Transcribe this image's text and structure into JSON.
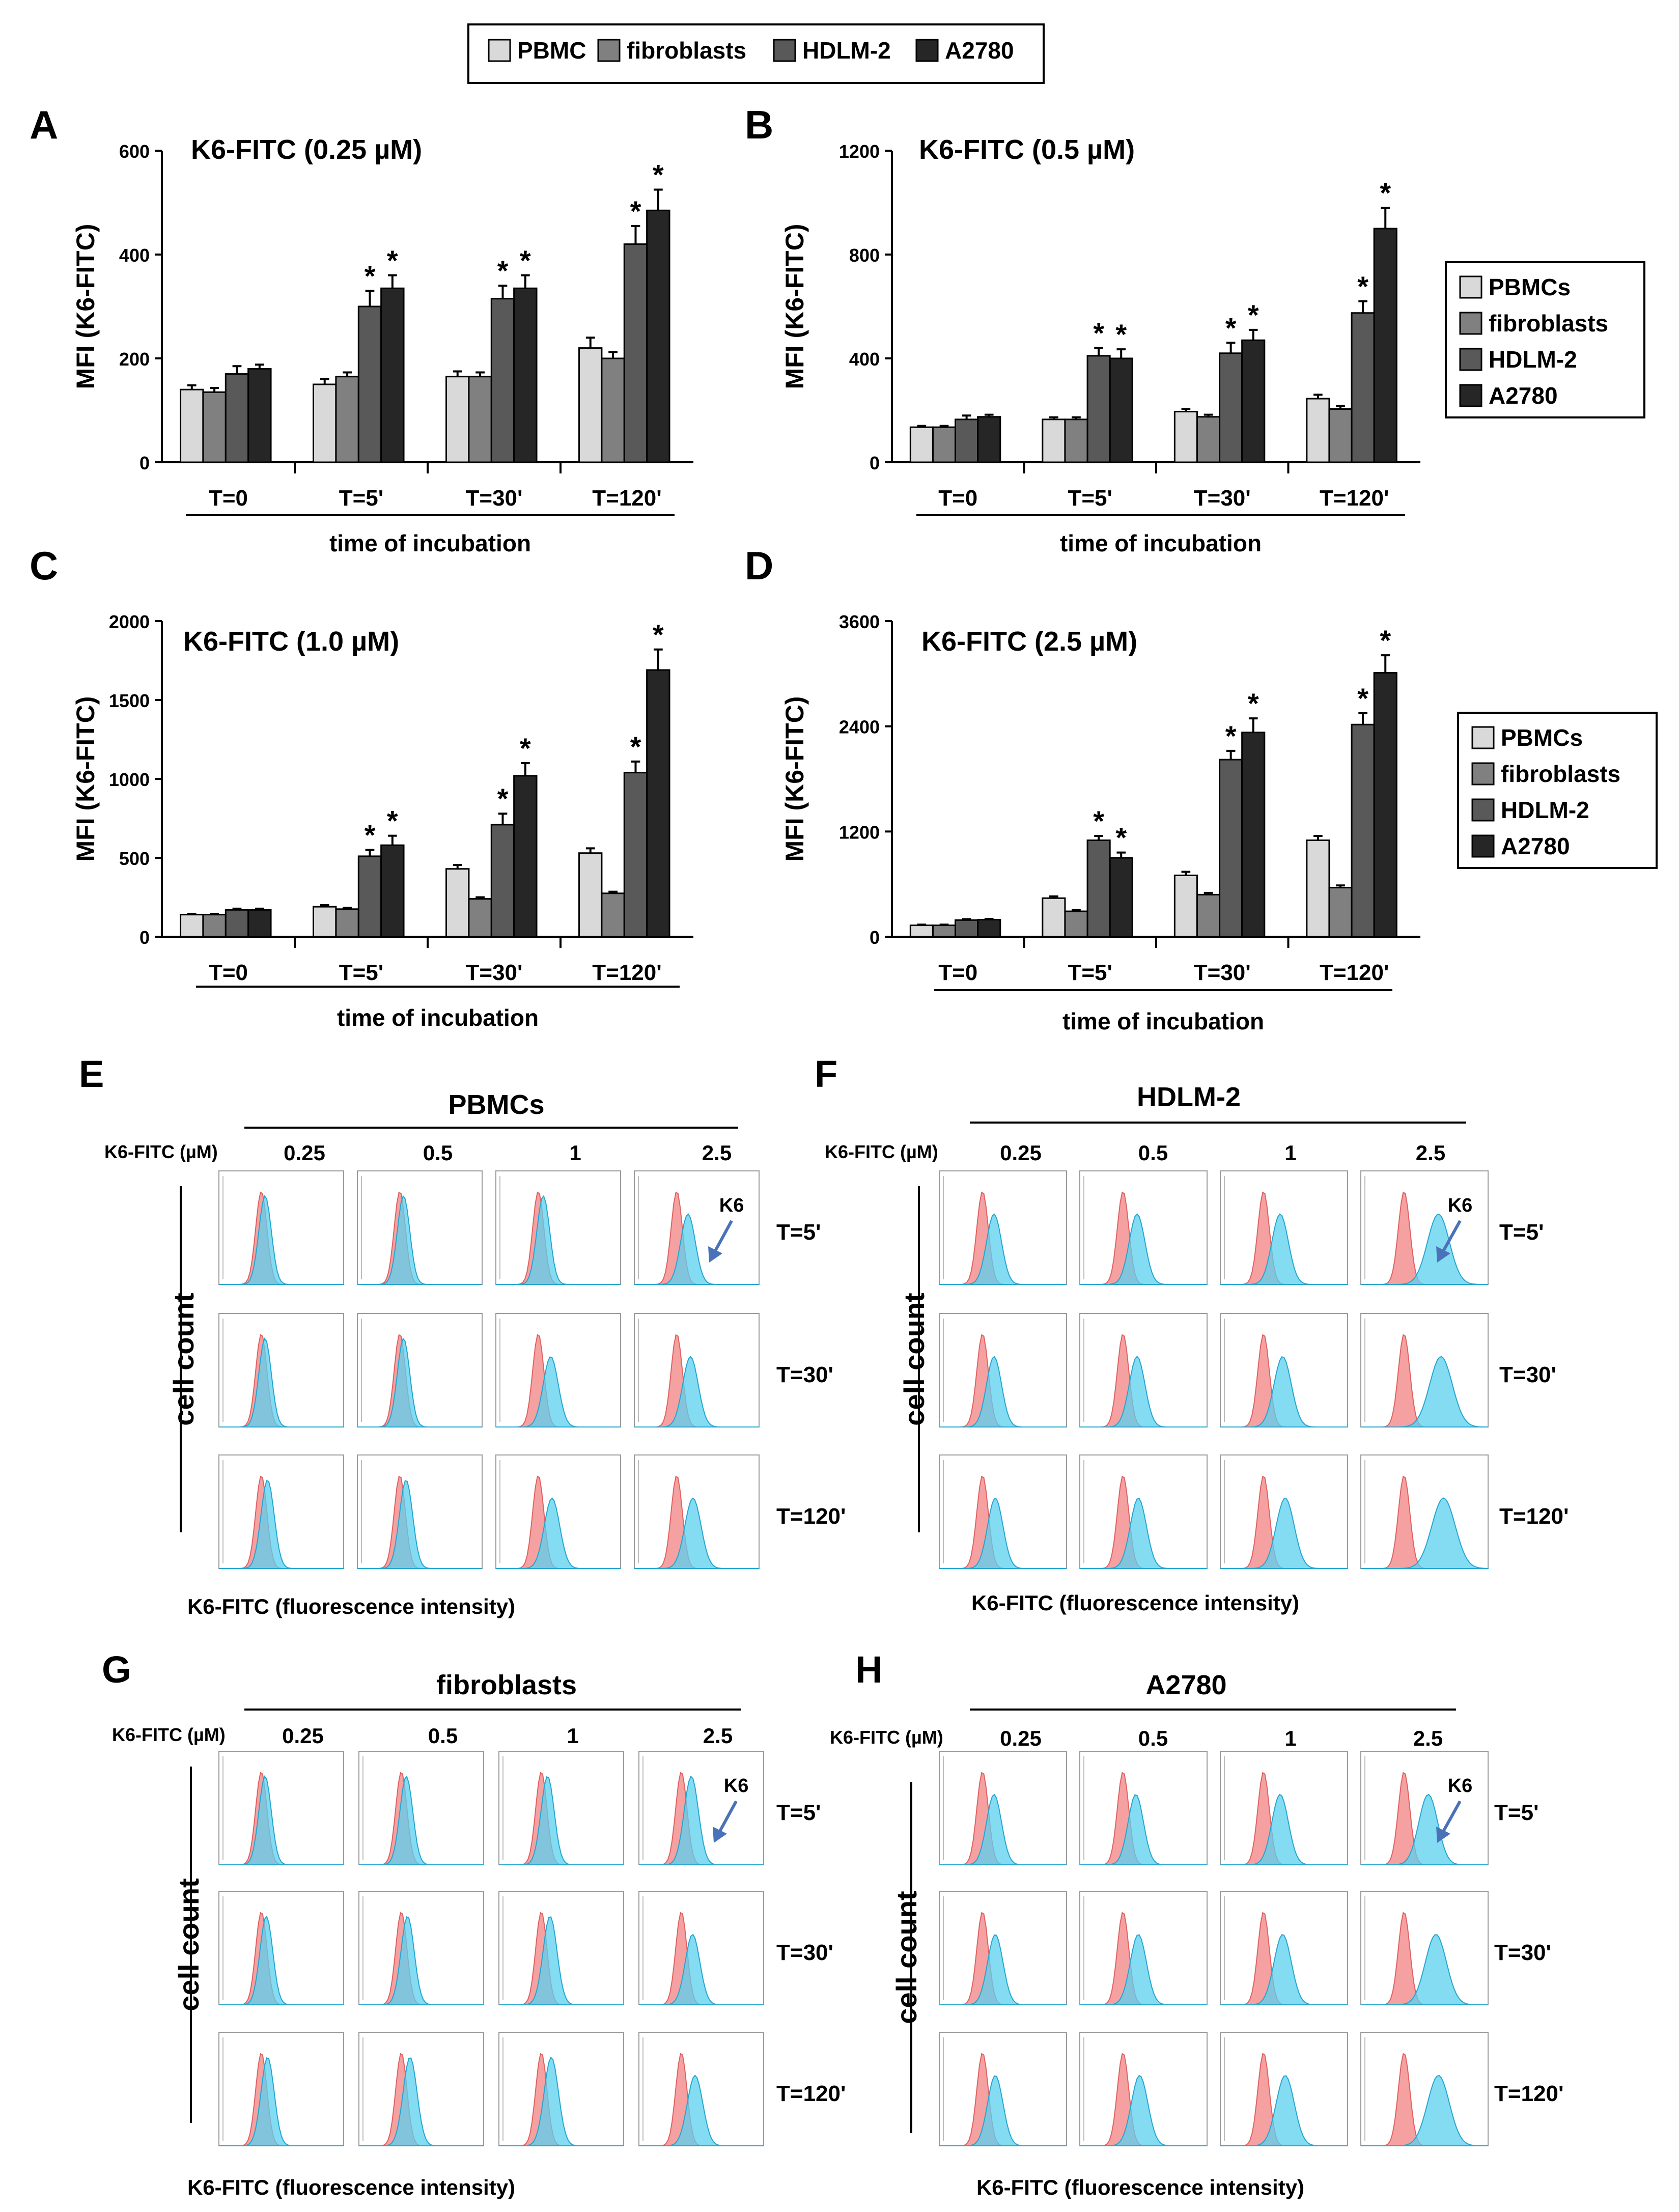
{
  "legend_top": {
    "items": [
      {
        "label": "PBMC",
        "color": "#d9d9d9"
      },
      {
        "label": "fibroblasts",
        "color": "#808080"
      },
      {
        "label": "HDLM-2",
        "color": "#595959"
      },
      {
        "label": "A2780",
        "color": "#262626"
      }
    ]
  },
  "legend_side": {
    "items": [
      {
        "label": "PBMCs",
        "color": "#d9d9d9"
      },
      {
        "label": "fibroblasts",
        "color": "#808080"
      },
      {
        "label": "HDLM-2",
        "color": "#595959"
      },
      {
        "label": "A2780",
        "color": "#262626"
      }
    ]
  },
  "chart_data": [
    {
      "type": "bar",
      "panel": "A",
      "title": "K6-FITC (0.25 µM)",
      "xlabel": "time of incubation",
      "ylabel": "MFI (K6-FITC)",
      "ylim": [
        0,
        600
      ],
      "yticks": [
        "0",
        "200",
        "400",
        "600"
      ],
      "categories": [
        "T=0",
        "T=5'",
        "T=30'",
        "T=120'"
      ],
      "series": [
        {
          "name": "PBMC",
          "values": [
            140,
            150,
            165,
            220
          ],
          "errors": [
            8,
            10,
            10,
            20
          ]
        },
        {
          "name": "fibroblasts",
          "values": [
            135,
            165,
            165,
            200
          ],
          "errors": [
            8,
            8,
            8,
            12
          ]
        },
        {
          "name": "HDLM-2",
          "values": [
            170,
            300,
            315,
            420
          ],
          "errors": [
            15,
            30,
            25,
            35
          ]
        },
        {
          "name": "A2780",
          "values": [
            180,
            335,
            335,
            485
          ],
          "errors": [
            8,
            25,
            25,
            40
          ]
        }
      ],
      "significant": [
        [
          false,
          false,
          false,
          false
        ],
        [
          false,
          false,
          false,
          false
        ],
        [
          false,
          true,
          true,
          true
        ],
        [
          false,
          true,
          true,
          true
        ]
      ],
      "sig_symbol": "*"
    },
    {
      "type": "bar",
      "panel": "B",
      "title": "K6-FITC (0.5 µM)",
      "xlabel": "time of incubation",
      "ylabel": "MFI (K6-FITC)",
      "ylim": [
        0,
        1200
      ],
      "yticks": [
        "0",
        "400",
        "800",
        "1200"
      ],
      "categories": [
        "T=0",
        "T=5'",
        "T=30'",
        "T=120'"
      ],
      "series": [
        {
          "name": "PBMCs",
          "values": [
            135,
            165,
            195,
            245
          ],
          "errors": [
            5,
            8,
            10,
            15
          ]
        },
        {
          "name": "fibroblasts",
          "values": [
            135,
            165,
            175,
            205
          ],
          "errors": [
            5,
            8,
            8,
            12
          ]
        },
        {
          "name": "HDLM-2",
          "values": [
            165,
            410,
            420,
            575
          ],
          "errors": [
            15,
            30,
            40,
            45
          ]
        },
        {
          "name": "A2780",
          "values": [
            175,
            400,
            470,
            900
          ],
          "errors": [
            8,
            35,
            40,
            80
          ]
        }
      ],
      "significant": [
        [
          false,
          false,
          false,
          false
        ],
        [
          false,
          false,
          false,
          false
        ],
        [
          false,
          true,
          true,
          true
        ],
        [
          false,
          true,
          true,
          true
        ]
      ],
      "sig_symbol": "*"
    },
    {
      "type": "bar",
      "panel": "C",
      "title": "K6-FITC (1.0 µM)",
      "xlabel": "time of incubation",
      "ylabel": "MFI (K6-FITC)",
      "ylim": [
        0,
        2000
      ],
      "yticks": [
        "0",
        "500",
        "1000",
        "1500",
        "2000"
      ],
      "categories": [
        "T=0",
        "T=5'",
        "T=30'",
        "T=120'"
      ],
      "series": [
        {
          "name": "PBMCs",
          "values": [
            140,
            190,
            430,
            530
          ],
          "errors": [
            5,
            10,
            25,
            30
          ]
        },
        {
          "name": "fibroblasts",
          "values": [
            140,
            175,
            240,
            275
          ],
          "errors": [
            5,
            8,
            10,
            10
          ]
        },
        {
          "name": "HDLM-2",
          "values": [
            170,
            510,
            710,
            1040
          ],
          "errors": [
            8,
            40,
            70,
            70
          ]
        },
        {
          "name": "A2780",
          "values": [
            170,
            580,
            1020,
            1690
          ],
          "errors": [
            8,
            60,
            80,
            130
          ]
        }
      ],
      "significant": [
        [
          false,
          false,
          false,
          false
        ],
        [
          false,
          false,
          false,
          false
        ],
        [
          false,
          true,
          true,
          true
        ],
        [
          false,
          true,
          true,
          true
        ]
      ],
      "sig_symbol": "*"
    },
    {
      "type": "bar",
      "panel": "D",
      "title": "K6-FITC (2.5 µM)",
      "xlabel": "time of incubation",
      "ylabel": "MFI (K6-FITC)",
      "ylim": [
        0,
        3600
      ],
      "yticks": [
        "0",
        "1200",
        "2400",
        "3600"
      ],
      "categories": [
        "T=0",
        "T=5'",
        "T=30'",
        "T=120'"
      ],
      "series": [
        {
          "name": "PBMCs",
          "values": [
            130,
            440,
            700,
            1100
          ],
          "errors": [
            8,
            20,
            40,
            50
          ]
        },
        {
          "name": "fibroblasts",
          "values": [
            130,
            290,
            480,
            560
          ],
          "errors": [
            8,
            15,
            20,
            25
          ]
        },
        {
          "name": "HDLM-2",
          "values": [
            190,
            1100,
            2020,
            2420
          ],
          "errors": [
            10,
            50,
            100,
            130
          ]
        },
        {
          "name": "A2780",
          "values": [
            195,
            900,
            2330,
            3010
          ],
          "errors": [
            8,
            60,
            160,
            200
          ]
        }
      ],
      "significant": [
        [
          false,
          false,
          false,
          false
        ],
        [
          false,
          false,
          false,
          false
        ],
        [
          false,
          true,
          true,
          true
        ],
        [
          false,
          true,
          true,
          true
        ]
      ],
      "sig_symbol": "*"
    }
  ],
  "histograms": {
    "conc_label": "K6-FITC (µM)",
    "concentrations": [
      "0.25",
      "0.5",
      "1",
      "2.5"
    ],
    "times": [
      "T=5'",
      "T=30'",
      "T=120'"
    ],
    "ylabel": "cell count",
    "xlabel": "K6-FITC (fluorescence intensity)",
    "arrow_label": "K6",
    "control_color": "#f48a8a",
    "k6_color": "#5bd0ef",
    "panels": [
      {
        "letter": "E",
        "title": "PBMCs",
        "shifts": [
          [
            0,
            0,
            1,
            6
          ],
          [
            0,
            0,
            7,
            8
          ],
          [
            2,
            2,
            8,
            10
          ]
        ]
      },
      {
        "letter": "F",
        "title": "HDLM-2",
        "shifts": [
          [
            6,
            8,
            10,
            24
          ],
          [
            6,
            8,
            12,
            26
          ],
          [
            7,
            9,
            14,
            28
          ]
        ]
      },
      {
        "letter": "G",
        "title": "fibroblasts",
        "shifts": [
          [
            0,
            1,
            2,
            5
          ],
          [
            1,
            2,
            4,
            6
          ],
          [
            2,
            4,
            5,
            8
          ]
        ]
      },
      {
        "letter": "H",
        "title": "A2780",
        "shifts": [
          [
            6,
            7,
            10,
            16
          ],
          [
            7,
            9,
            12,
            22
          ],
          [
            7,
            10,
            14,
            24
          ]
        ]
      }
    ]
  }
}
